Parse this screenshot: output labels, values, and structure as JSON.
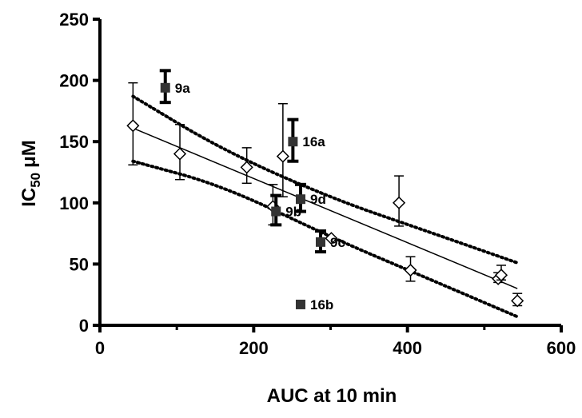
{
  "chart_data": {
    "type": "scatter",
    "title": "",
    "xlabel": "AUC at 10 min",
    "ylabel": {
      "main": "IC",
      "sub": "50",
      "unit": "μM"
    },
    "xlim": [
      0,
      600
    ],
    "ylim": [
      0,
      250
    ],
    "x_ticks": [
      "0",
      "200",
      "400",
      "600"
    ],
    "y_ticks": [
      "0",
      "50",
      "100",
      "150",
      "200",
      "250"
    ],
    "grid": false,
    "legend": "none",
    "series": [
      {
        "marker": "open-diamond",
        "points": [
          {
            "x": 43,
            "y": 163,
            "err": [
              32,
              35
            ]
          },
          {
            "x": 104,
            "y": 140,
            "err": [
              21,
              24
            ]
          },
          {
            "x": 191,
            "y": 129,
            "err": [
              13,
              16
            ]
          },
          {
            "x": 225,
            "y": 97,
            "err": [
              15,
              18
            ]
          },
          {
            "x": 238,
            "y": 138,
            "err": [
              33,
              43
            ]
          },
          {
            "x": 301,
            "y": 71,
            "err": [
              0,
              0
            ]
          },
          {
            "x": 389,
            "y": 100,
            "err": [
              19,
              22
            ]
          },
          {
            "x": 404,
            "y": 45,
            "err": [
              9,
              11
            ]
          },
          {
            "x": 518,
            "y": 38,
            "err": [
              3,
              5
            ]
          },
          {
            "x": 522,
            "y": 41,
            "err": [
              4,
              8
            ]
          },
          {
            "x": 543,
            "y": 20,
            "err": [
              4,
              6
            ]
          }
        ]
      },
      {
        "marker": "filled-square",
        "points": [
          {
            "x": 85,
            "y": 194,
            "err": [
              12,
              14
            ],
            "label": "9a"
          },
          {
            "x": 251,
            "y": 150,
            "err": [
              16,
              18
            ],
            "label": "16a"
          },
          {
            "x": 261,
            "y": 103,
            "err": [
              10,
              12
            ],
            "label": "9d"
          },
          {
            "x": 229,
            "y": 93,
            "err": [
              11,
              13
            ],
            "label": "9b"
          },
          {
            "x": 287,
            "y": 68,
            "err": [
              8,
              9
            ],
            "label": "9c"
          },
          {
            "x": 261,
            "y": 17,
            "err": [
              0,
              0
            ],
            "label": "16b"
          }
        ]
      }
    ],
    "fit_line": {
      "style": "solid",
      "points": [
        [
          43,
          161
        ],
        [
          543,
          30
        ]
      ]
    },
    "confidence_band": {
      "style": "dotted",
      "upper": [
        [
          43,
          187
        ],
        [
          160,
          143
        ],
        [
          300,
          104
        ],
        [
          420,
          78
        ],
        [
          543,
          51
        ]
      ],
      "lower": [
        [
          43,
          134
        ],
        [
          160,
          114
        ],
        [
          300,
          72
        ],
        [
          420,
          40
        ],
        [
          543,
          7
        ]
      ]
    }
  }
}
